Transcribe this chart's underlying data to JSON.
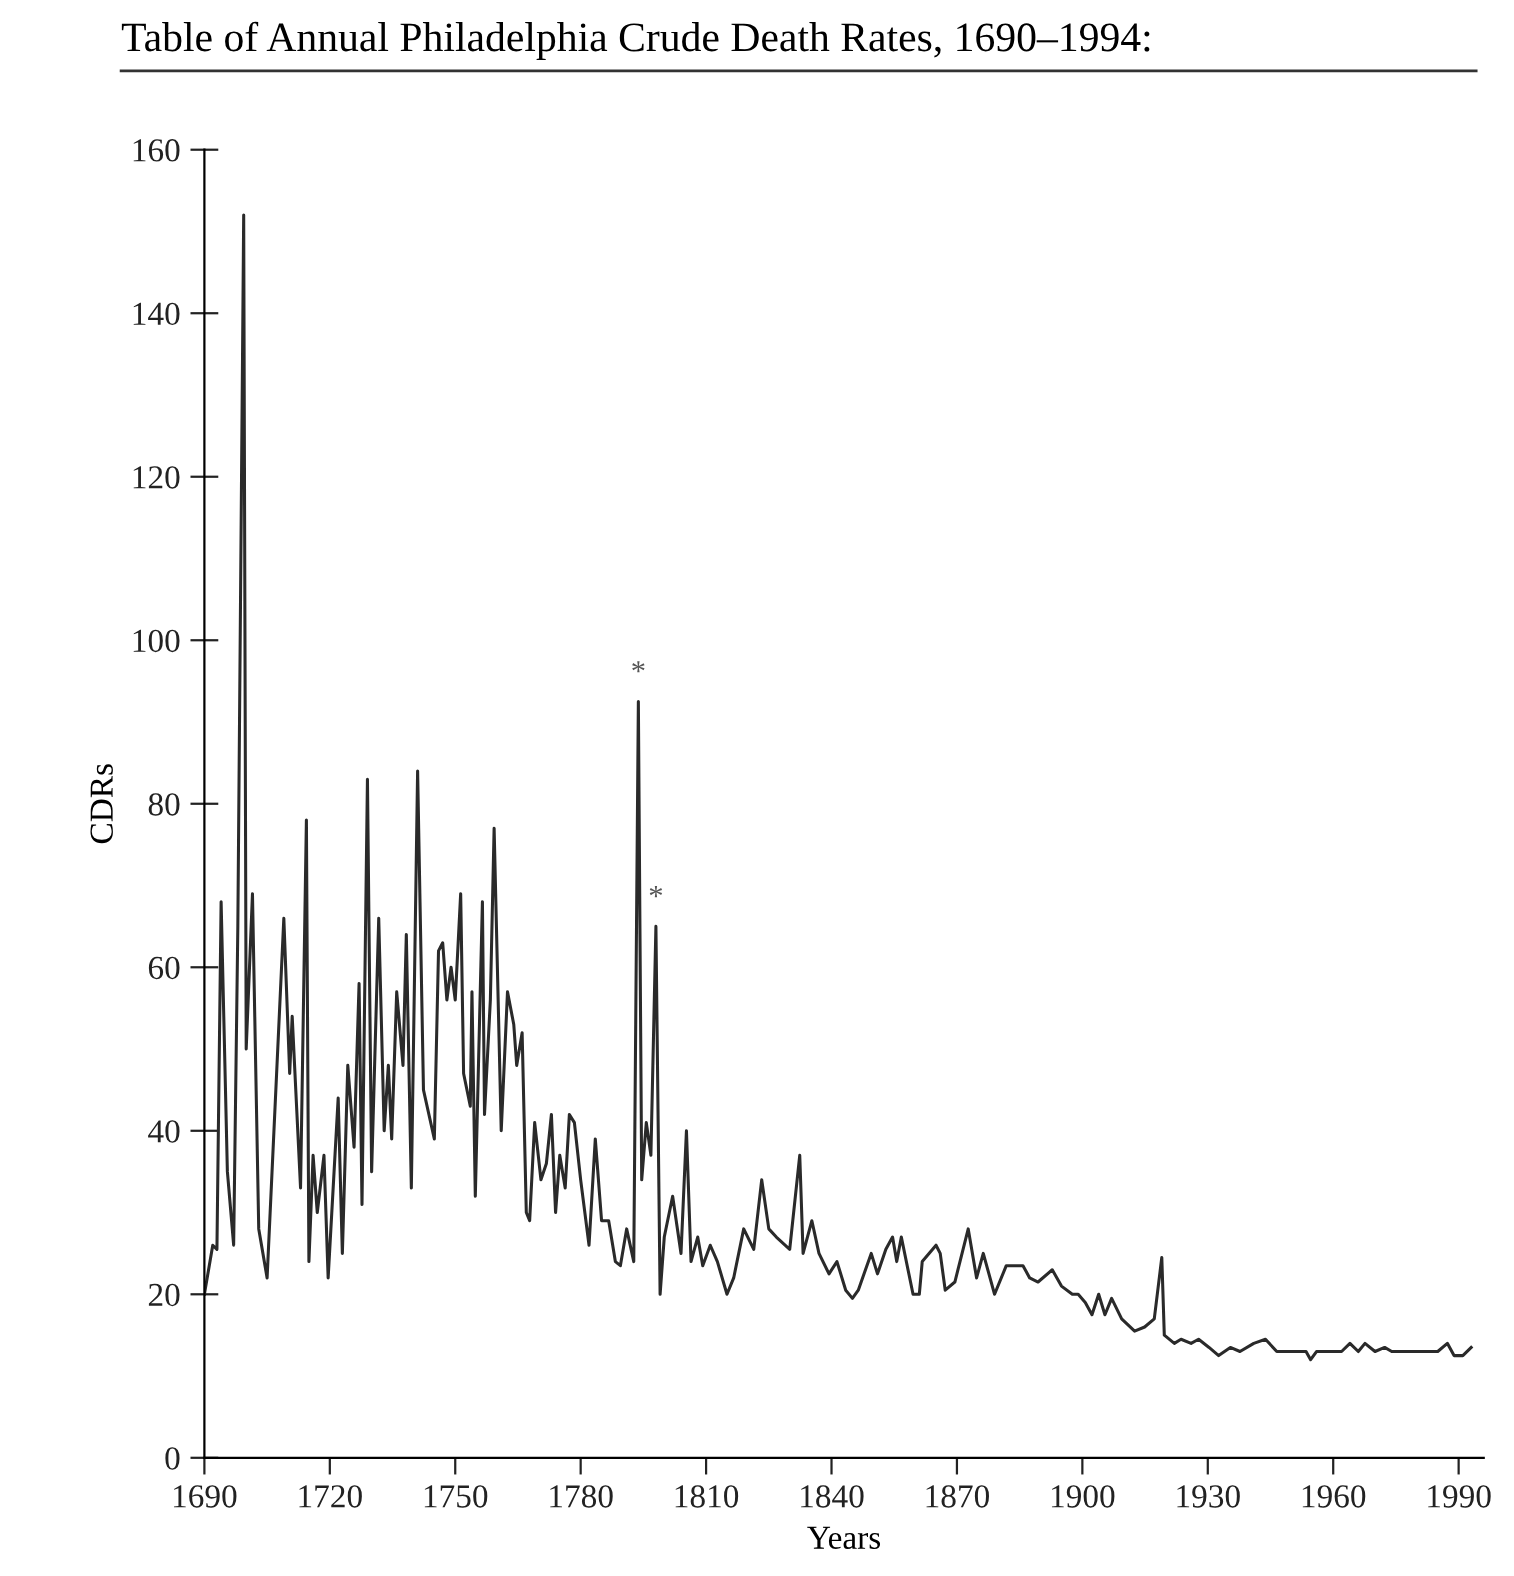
{
  "chart_data": {
    "type": "line",
    "title": "Table of Annual Philadelphia Crude Death Rates, 1690–1994:",
    "xlabel": "Years",
    "ylabel": "CDRs",
    "x": [
      1690,
      1692,
      1693,
      1694,
      1695.5,
      1697,
      1698,
      1699.4,
      1700,
      1701.5,
      1703,
      1705,
      1709,
      1710.4,
      1711,
      1713,
      1714.4,
      1715,
      1716,
      1717,
      1718.6,
      1719.6,
      1722,
      1723,
      1724.3,
      1725.8,
      1727,
      1727.7,
      1729,
      1730,
      1731.7,
      1733,
      1734,
      1734.8,
      1736,
      1737.5,
      1738.3,
      1739.5,
      1741,
      1742.4,
      1745,
      1746,
      1747,
      1748,
      1749,
      1750,
      1751.3,
      1752,
      1753.6,
      1754,
      1754.8,
      1756.5,
      1757,
      1758.4,
      1759.3,
      1761,
      1762.5,
      1764,
      1764.7,
      1766,
      1767,
      1767.8,
      1769,
      1770.5,
      1771.8,
      1773,
      1774,
      1775,
      1776.3,
      1777.3,
      1778.5,
      1780,
      1782,
      1783.5,
      1785,
      1786.7,
      1788.3,
      1789.5,
      1791,
      1792.7,
      1793.8,
      1794.6,
      1795.7,
      1796.8,
      1798,
      1799,
      1800,
      1802,
      1804,
      1805.3,
      1806.4,
      1808,
      1809.2,
      1811,
      1812.7,
      1815,
      1816.6,
      1819,
      1821.4,
      1823.3,
      1825,
      1826.8,
      1830,
      1832.4,
      1833.2,
      1835.3,
      1837,
      1839.4,
      1841.3,
      1843.4,
      1845,
      1846.4,
      1849.5,
      1851,
      1853,
      1854.6,
      1855.6,
      1856.7,
      1859.5,
      1861,
      1861.7,
      1865,
      1866,
      1867.2,
      1869.5,
      1872.7,
      1874.7,
      1876.3,
      1879,
      1881.8,
      1885.8,
      1887.4,
      1889.4,
      1892.8,
      1895,
      1897.6,
      1899,
      1900.7,
      1902.3,
      1903.9,
      1905.4,
      1907,
      1909.4,
      1912.5,
      1914.9,
      1917.2,
      1919,
      1919.6,
      1922,
      1923.6,
      1926,
      1927.8,
      1930.3,
      1932.6,
      1935.4,
      1937.7,
      1941,
      1943.8,
      1946.5,
      1953.5,
      1954.6,
      1956,
      1962,
      1964,
      1966,
      1967.6,
      1970,
      1972.3,
      1974,
      1985,
      1987.3,
      1988.9,
      1991,
      1993
    ],
    "series": [
      {
        "color": "#2a2a2a",
        "values": [
          20,
          26,
          25.5,
          68,
          35,
          26,
          65,
          152,
          50,
          69,
          28,
          22,
          66,
          47,
          54,
          33,
          78,
          24,
          37,
          30,
          37,
          22,
          44,
          25,
          48,
          38,
          58,
          31,
          83,
          35,
          66,
          40,
          48,
          39,
          57,
          48,
          64,
          33,
          84,
          45,
          39,
          62,
          63,
          56,
          60,
          56,
          69,
          47,
          43,
          57,
          32,
          68,
          42,
          56,
          77,
          40,
          57,
          53,
          48,
          52,
          30,
          29,
          41,
          34,
          36,
          42,
          30,
          37,
          33,
          42,
          41,
          34,
          26,
          39,
          29,
          29,
          24,
          23.5,
          28,
          24,
          92.5,
          34,
          41,
          37,
          65,
          20,
          27,
          32,
          25,
          40,
          24,
          27,
          23.5,
          26,
          24,
          20,
          22,
          28,
          25.5,
          34,
          28,
          27,
          25.5,
          37,
          25,
          29,
          25,
          22.5,
          24,
          20.5,
          19.5,
          20.5,
          25,
          22.5,
          25.5,
          27,
          24,
          27,
          20,
          20,
          24,
          26,
          25,
          20.5,
          21.5,
          28,
          22,
          25,
          20,
          23.5,
          23.5,
          22,
          21.5,
          23,
          21,
          20,
          20,
          19,
          17.5,
          20,
          17.5,
          19.5,
          17,
          15.5,
          16,
          17,
          24.5,
          15,
          14,
          14.5,
          14,
          14.5,
          13.5,
          12.5,
          13.5,
          13,
          14,
          14.5,
          13,
          13,
          12,
          13,
          13,
          14,
          13,
          14,
          13,
          13.5,
          13,
          13,
          14,
          12.5,
          12.5,
          13.5
        ]
      }
    ],
    "annotations": [
      {
        "text": "*",
        "x": 1793.8,
        "y": 92.5
      },
      {
        "text": "*",
        "x": 1798,
        "y": 65
      }
    ],
    "xlim": [
      1690,
      1996
    ],
    "ylim": [
      0,
      160
    ],
    "xticks": [
      1690,
      1720,
      1750,
      1780,
      1810,
      1840,
      1870,
      1900,
      1930,
      1960,
      1990
    ],
    "yticks": [
      0,
      20,
      40,
      60,
      80,
      100,
      120,
      140,
      160
    ],
    "grid": false,
    "legend": false
  }
}
